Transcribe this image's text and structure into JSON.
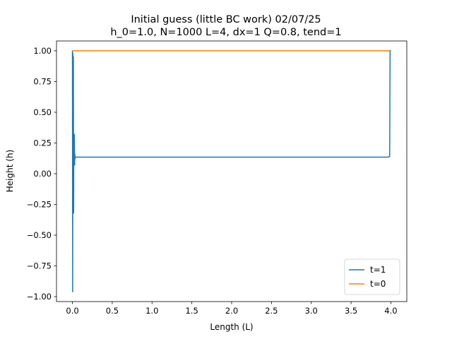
{
  "chart_data": {
    "type": "line",
    "title": "Initial guess (little BC work) 02/07/25",
    "subtitle": "h_0=1.0, N=1000 L=4, dx=1  Q=0.8, tend=1",
    "xlabel": "Length (L)",
    "ylabel": "Height (h)",
    "xlim": [
      -0.2,
      4.2
    ],
    "ylim": [
      -1.04,
      1.08
    ],
    "xticks": [
      "0.0",
      "0.5",
      "1.0",
      "1.5",
      "2.0",
      "2.5",
      "3.0",
      "3.5",
      "4.0"
    ],
    "yticks": [
      "−1.00",
      "−0.75",
      "−0.50",
      "−0.25",
      "0.00",
      "0.25",
      "0.50",
      "0.75",
      "1.00"
    ],
    "xtick_values": [
      0,
      0.5,
      1,
      1.5,
      2,
      2.5,
      3,
      3.5,
      4
    ],
    "ytick_values": [
      -1,
      -0.75,
      -0.5,
      -0.25,
      0,
      0.25,
      0.5,
      0.75,
      1
    ],
    "grid": false,
    "legend": "lower right",
    "series": [
      {
        "name": "t=1",
        "color": "#1f77b4",
        "x": [
          0,
          0.003,
          0.006,
          0.009,
          0.012,
          0.015,
          0.018,
          0.021,
          0.024,
          0.028,
          0.03,
          0.032,
          0.035,
          0.04,
          0.06,
          1.0,
          2.0,
          3.0,
          3.96,
          3.985,
          3.99,
          4.0
        ],
        "y": [
          1.0,
          -0.96,
          0.98,
          0.1,
          0.95,
          -0.32,
          0.32,
          0.08,
          0.32,
          0.07,
          0.16,
          0.12,
          0.14,
          0.135,
          0.135,
          0.135,
          0.135,
          0.135,
          0.135,
          0.14,
          1.0,
          1.0
        ]
      },
      {
        "name": "t=0",
        "color": "#ff7f0e",
        "x": [
          0,
          4.0
        ],
        "y": [
          1.0,
          1.0
        ]
      }
    ]
  }
}
